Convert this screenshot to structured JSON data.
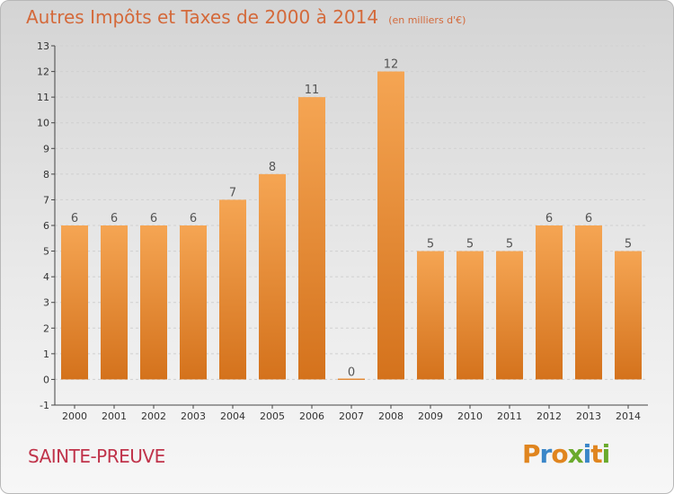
{
  "header": {
    "title": "Autres Impôts et Taxes de 2000 à 2014",
    "subtitle": "(en milliers d'€)"
  },
  "footer": {
    "commune": "SAINTE-PREUVE",
    "logo_text": "Proxiti",
    "logo_colors": [
      "#e0851f",
      "#3a86c8",
      "#e0851f",
      "#6aaa2c",
      "#3a86c8",
      "#e0851f",
      "#6aaa2c"
    ]
  },
  "colors": {
    "bar_top": "#f5a553",
    "bar_bottom": "#d4721c",
    "grid": "#d0d0d0",
    "axis": "#444444"
  },
  "chart_data": {
    "type": "bar",
    "categories": [
      "2000",
      "2001",
      "2002",
      "2003",
      "2004",
      "2005",
      "2006",
      "2007",
      "2008",
      "2009",
      "2010",
      "2011",
      "2012",
      "2013",
      "2014"
    ],
    "values": [
      6,
      6,
      6,
      6,
      7,
      8,
      11,
      0,
      12,
      5,
      5,
      5,
      6,
      6,
      5
    ],
    "data_labels": [
      "6",
      "6",
      "6",
      "6",
      "7",
      "8",
      "11",
      "0",
      "12",
      "5",
      "5",
      "5",
      "6",
      "6",
      "5"
    ],
    "title": "Autres Impôts et Taxes de 2000 à 2014",
    "xlabel": "",
    "ylabel": "",
    "ylim": [
      -1,
      13
    ],
    "yticks": [
      "-1",
      "0",
      "1",
      "2",
      "3",
      "4",
      "5",
      "6",
      "7",
      "8",
      "9",
      "10",
      "11",
      "12",
      "13"
    ],
    "grid": true,
    "legend": "none"
  }
}
